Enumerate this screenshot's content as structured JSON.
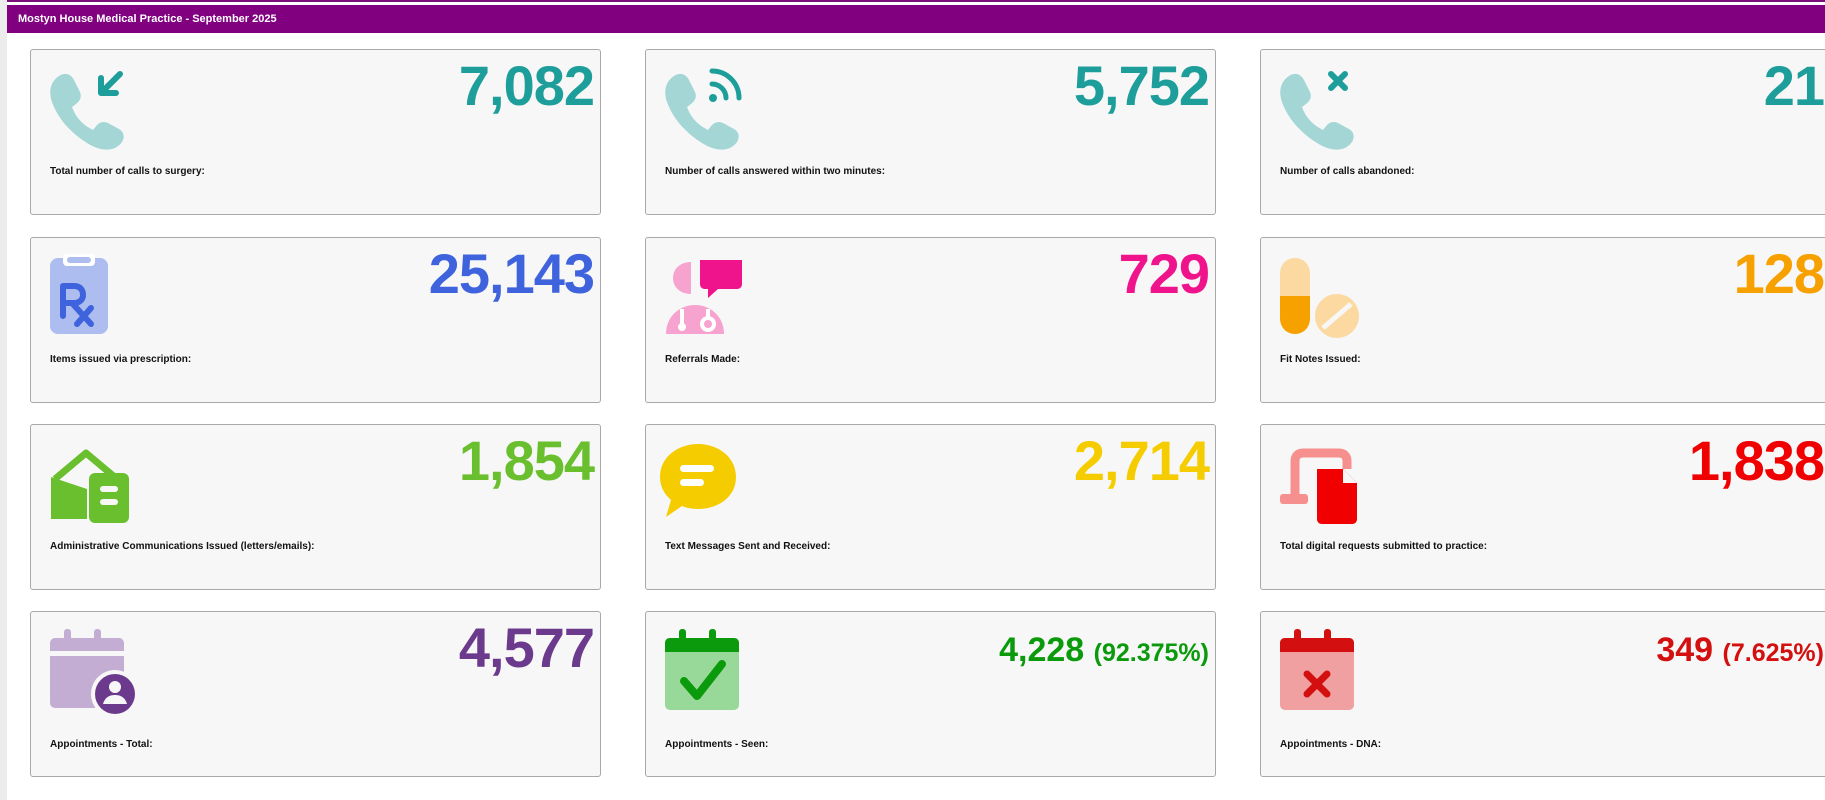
{
  "header": {
    "title": "Mostyn House Medical Practice - September 2025"
  },
  "cards": {
    "total_calls": {
      "value": "7,082",
      "label": "Total number of calls to surgery:",
      "color": "#1e9e9a",
      "icon": "phone-incoming-icon"
    },
    "calls_answered": {
      "value": "5,752",
      "label": "Number of calls answered within two minutes:",
      "color": "#1e9e9a",
      "icon": "phone-ringing-icon"
    },
    "calls_abandoned": {
      "value": "21",
      "label": "Number of calls abandoned:",
      "color": "#1e9e9a",
      "icon": "phone-missed-icon"
    },
    "prescription_items": {
      "value": "25,143",
      "label": "Items issued via prescription:",
      "color": "#3e63dd",
      "icon": "prescription-icon"
    },
    "referrals": {
      "value": "729",
      "label": "Referrals Made:",
      "color": "#f0148c",
      "icon": "doctor-chat-icon"
    },
    "fit_notes": {
      "value": "128",
      "label": "Fit Notes Issued:",
      "color": "#f7a100",
      "icon": "pills-icon"
    },
    "admin_comms": {
      "value": "1,854",
      "label": "Administrative Communications Issued (letters/emails):",
      "color": "#6abf2e",
      "icon": "envelope-letter-icon"
    },
    "text_messages": {
      "value": "2,714",
      "label": "Text Messages Sent and Received:",
      "color": "#f5cc00",
      "icon": "chat-bubble-icon"
    },
    "digital_requests": {
      "value": "1,838",
      "label": "Total digital requests submitted to practice:",
      "color": "#f00000",
      "icon": "device-file-icon"
    },
    "appointments_total": {
      "value": "4,577",
      "label": "Appointments - Total:",
      "color": "#6b3a8c",
      "icon": "calendar-user-icon"
    },
    "appointments_seen": {
      "value": "4,228",
      "pct": "(92.375%)",
      "label": "Appointments - Seen:",
      "color": "#0b9a0b",
      "icon": "calendar-check-icon"
    },
    "appointments_dna": {
      "value": "349",
      "pct": "(7.625%)",
      "label": "Appointments - DNA:",
      "color": "#d30f0f",
      "icon": "calendar-x-icon"
    }
  }
}
